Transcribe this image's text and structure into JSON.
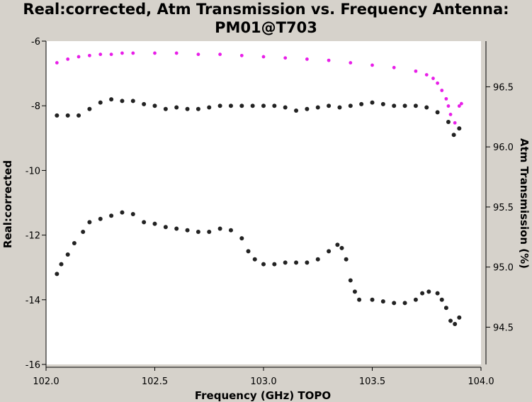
{
  "chart_data": {
    "type": "scatter",
    "title_line1": "Real:corrected, Atm Transmission vs. Frequency Antenna:",
    "title_line2": "PM01@T703",
    "xlabel": "Frequency (GHz) TOPO",
    "ylabel": "Real:corrected",
    "y2label": "Atm Transmission (%)",
    "xlim": [
      102.0,
      104.0
    ],
    "ylim": [
      -16,
      -6
    ],
    "y2lim": [
      94.19,
      96.88
    ],
    "xticks": [
      "102.0",
      "102.5",
      "103.0",
      "103.5",
      "104.0"
    ],
    "yticks": [
      "-6",
      "-8",
      "-10",
      "-12",
      "-14",
      "-16"
    ],
    "y2ticks": [
      "96.5",
      "96.0",
      "95.5",
      "95.0",
      "94.5"
    ],
    "grid": false,
    "colors": {
      "data": "#222222",
      "atm": "#e81ee8",
      "plot_bg": "#ffffff",
      "frame_bg": "#d6d2cb"
    },
    "series": [
      {
        "axis": "left",
        "color": "#222222",
        "points": [
          [
            102.05,
            -8.3
          ],
          [
            102.1,
            -8.3
          ],
          [
            102.15,
            -8.3
          ],
          [
            102.2,
            -8.1
          ],
          [
            102.25,
            -7.9
          ],
          [
            102.3,
            -7.8
          ],
          [
            102.35,
            -7.85
          ],
          [
            102.4,
            -7.85
          ],
          [
            102.45,
            -7.95
          ],
          [
            102.5,
            -8.0
          ],
          [
            102.55,
            -8.1
          ],
          [
            102.6,
            -8.05
          ],
          [
            102.65,
            -8.1
          ],
          [
            102.7,
            -8.1
          ],
          [
            102.75,
            -8.05
          ],
          [
            102.8,
            -8.0
          ],
          [
            102.85,
            -8.0
          ],
          [
            102.9,
            -8.0
          ],
          [
            102.95,
            -8.0
          ],
          [
            103.0,
            -8.0
          ],
          [
            103.05,
            -8.0
          ],
          [
            103.1,
            -8.05
          ],
          [
            103.15,
            -8.15
          ],
          [
            103.2,
            -8.1
          ],
          [
            103.25,
            -8.05
          ],
          [
            103.3,
            -8.0
          ],
          [
            103.35,
            -8.05
          ],
          [
            103.4,
            -8.0
          ],
          [
            103.45,
            -7.95
          ],
          [
            103.5,
            -7.9
          ],
          [
            103.55,
            -7.95
          ],
          [
            103.6,
            -8.0
          ],
          [
            103.65,
            -8.0
          ],
          [
            103.7,
            -8.0
          ],
          [
            103.75,
            -8.05
          ],
          [
            103.8,
            -8.2
          ],
          [
            103.85,
            -8.5
          ],
          [
            103.875,
            -8.9
          ],
          [
            103.9,
            -8.7
          ]
        ]
      },
      {
        "axis": "left",
        "color": "#222222",
        "points": [
          [
            102.05,
            -13.2
          ],
          [
            102.07,
            -12.9
          ],
          [
            102.1,
            -12.6
          ],
          [
            102.13,
            -12.25
          ],
          [
            102.17,
            -11.9
          ],
          [
            102.2,
            -11.6
          ],
          [
            102.25,
            -11.5
          ],
          [
            102.3,
            -11.4
          ],
          [
            102.35,
            -11.3
          ],
          [
            102.4,
            -11.35
          ],
          [
            102.45,
            -11.6
          ],
          [
            102.5,
            -11.65
          ],
          [
            102.55,
            -11.75
          ],
          [
            102.6,
            -11.8
          ],
          [
            102.65,
            -11.85
          ],
          [
            102.7,
            -11.9
          ],
          [
            102.75,
            -11.9
          ],
          [
            102.8,
            -11.8
          ],
          [
            102.85,
            -11.85
          ],
          [
            102.9,
            -12.1
          ],
          [
            102.93,
            -12.5
          ],
          [
            102.96,
            -12.75
          ],
          [
            103.0,
            -12.9
          ],
          [
            103.05,
            -12.9
          ],
          [
            103.1,
            -12.85
          ],
          [
            103.15,
            -12.85
          ],
          [
            103.2,
            -12.85
          ],
          [
            103.25,
            -12.75
          ],
          [
            103.3,
            -12.5
          ],
          [
            103.34,
            -12.3
          ],
          [
            103.36,
            -12.4
          ],
          [
            103.38,
            -12.75
          ],
          [
            103.4,
            -13.4
          ],
          [
            103.42,
            -13.75
          ],
          [
            103.44,
            -14.0
          ],
          [
            103.5,
            -14.0
          ],
          [
            103.55,
            -14.05
          ],
          [
            103.6,
            -14.1
          ],
          [
            103.65,
            -14.1
          ],
          [
            103.7,
            -14.0
          ],
          [
            103.73,
            -13.8
          ],
          [
            103.76,
            -13.75
          ],
          [
            103.8,
            -13.8
          ],
          [
            103.82,
            -14.0
          ],
          [
            103.84,
            -14.25
          ],
          [
            103.86,
            -14.65
          ],
          [
            103.88,
            -14.75
          ],
          [
            103.9,
            -14.55
          ]
        ]
      },
      {
        "axis": "right",
        "color": "#e81ee8",
        "points": [
          [
            102.05,
            96.7
          ],
          [
            102.1,
            96.73
          ],
          [
            102.15,
            96.75
          ],
          [
            102.2,
            96.76
          ],
          [
            102.25,
            96.77
          ],
          [
            102.3,
            96.77
          ],
          [
            102.35,
            96.78
          ],
          [
            102.4,
            96.78
          ],
          [
            102.5,
            96.78
          ],
          [
            102.6,
            96.78
          ],
          [
            102.7,
            96.77
          ],
          [
            102.8,
            96.77
          ],
          [
            102.9,
            96.76
          ],
          [
            103.0,
            96.75
          ],
          [
            103.1,
            96.74
          ],
          [
            103.2,
            96.73
          ],
          [
            103.3,
            96.72
          ],
          [
            103.4,
            96.7
          ],
          [
            103.5,
            96.68
          ],
          [
            103.6,
            96.66
          ],
          [
            103.7,
            96.63
          ],
          [
            103.75,
            96.6
          ],
          [
            103.78,
            96.57
          ],
          [
            103.8,
            96.53
          ],
          [
            103.82,
            96.47
          ],
          [
            103.84,
            96.4
          ],
          [
            103.85,
            96.34
          ],
          [
            103.86,
            96.27
          ],
          [
            103.88,
            96.2
          ],
          [
            103.9,
            96.34
          ],
          [
            103.91,
            96.36
          ]
        ]
      }
    ]
  }
}
